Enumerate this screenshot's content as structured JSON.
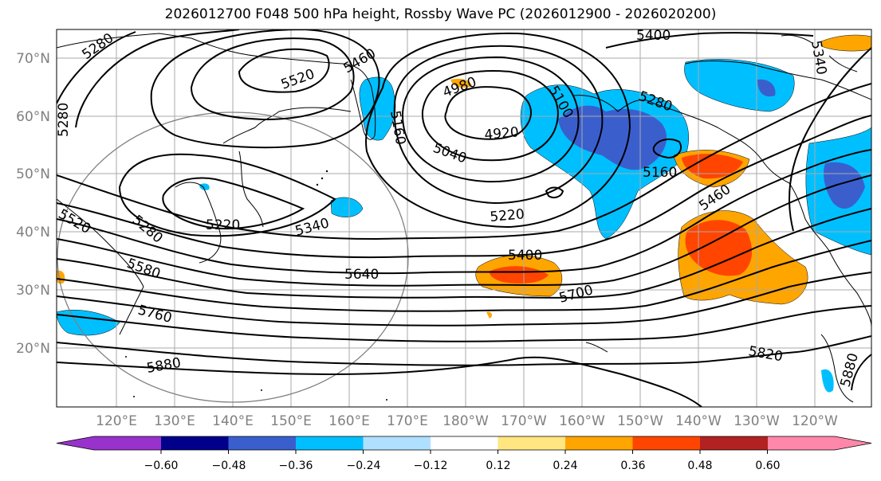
{
  "title": "2026012700 F048 500 hPa height, Rossby Wave PC (2026012900 - 2026020200)",
  "lat_labels": [
    "70°N",
    "60°N",
    "50°N",
    "40°N",
    "30°N",
    "20°N"
  ],
  "lon_labels": [
    "120°E",
    "130°E",
    "140°E",
    "150°E",
    "160°E",
    "170°E",
    "180°W",
    "170°W",
    "160°W",
    "150°W",
    "140°W",
    "130°W",
    "120°W"
  ],
  "contour_labels": [
    "5280",
    "5520",
    "5460",
    "5400",
    "5340",
    "5280",
    "4980",
    "5100",
    "5160",
    "4920",
    "5040",
    "5280",
    "5160",
    "5460",
    "5220",
    "5280",
    "5220",
    "5340",
    "5520",
    "5580",
    "5400",
    "5640",
    "5700",
    "5760",
    "5880",
    "5820",
    "5880"
  ],
  "colorbar": {
    "ticks": [
      "−0.60",
      "−0.48",
      "−0.36",
      "−0.24",
      "−0.12",
      "0.12",
      "0.24",
      "0.36",
      "0.48",
      "0.60"
    ],
    "colors": [
      "#9932CC",
      "#00008B",
      "#3A5FCD",
      "#00BFFF",
      "#B0E0FF",
      "#FFFFFF",
      "#FFE680",
      "#FFA500",
      "#FF4500",
      "#B22222",
      "#FF88AA"
    ]
  }
}
